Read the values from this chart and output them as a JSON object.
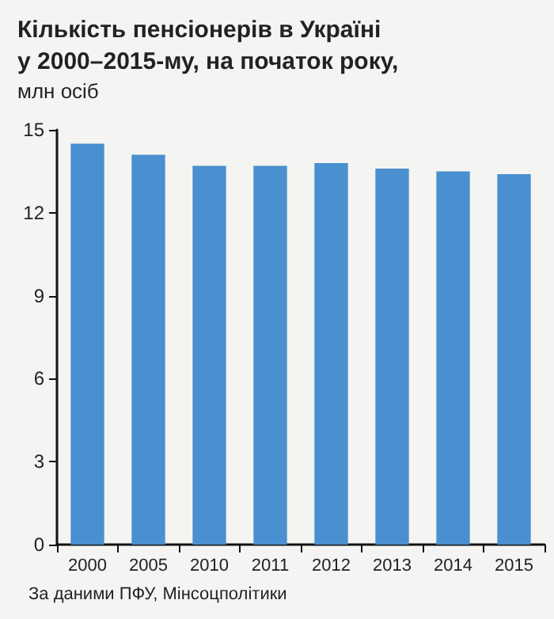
{
  "chart_data": {
    "type": "bar",
    "title": "Кількість пенсіонерів в Україні\nу 2000–2015-му, на початок року,",
    "subtitle": "млн осіб",
    "categories": [
      "2000",
      "2005",
      "2010",
      "2011",
      "2012",
      "2013",
      "2014",
      "2015"
    ],
    "values": [
      14.5,
      14.1,
      13.7,
      13.7,
      13.8,
      13.6,
      13.5,
      13.4
    ],
    "color": "#4a8fcf",
    "ylim": [
      0,
      15
    ],
    "yticks": [
      0,
      3,
      6,
      9,
      12,
      15
    ],
    "grid": false,
    "annotations": [
      "За даними ПФУ, Мінсоцполітики"
    ]
  }
}
